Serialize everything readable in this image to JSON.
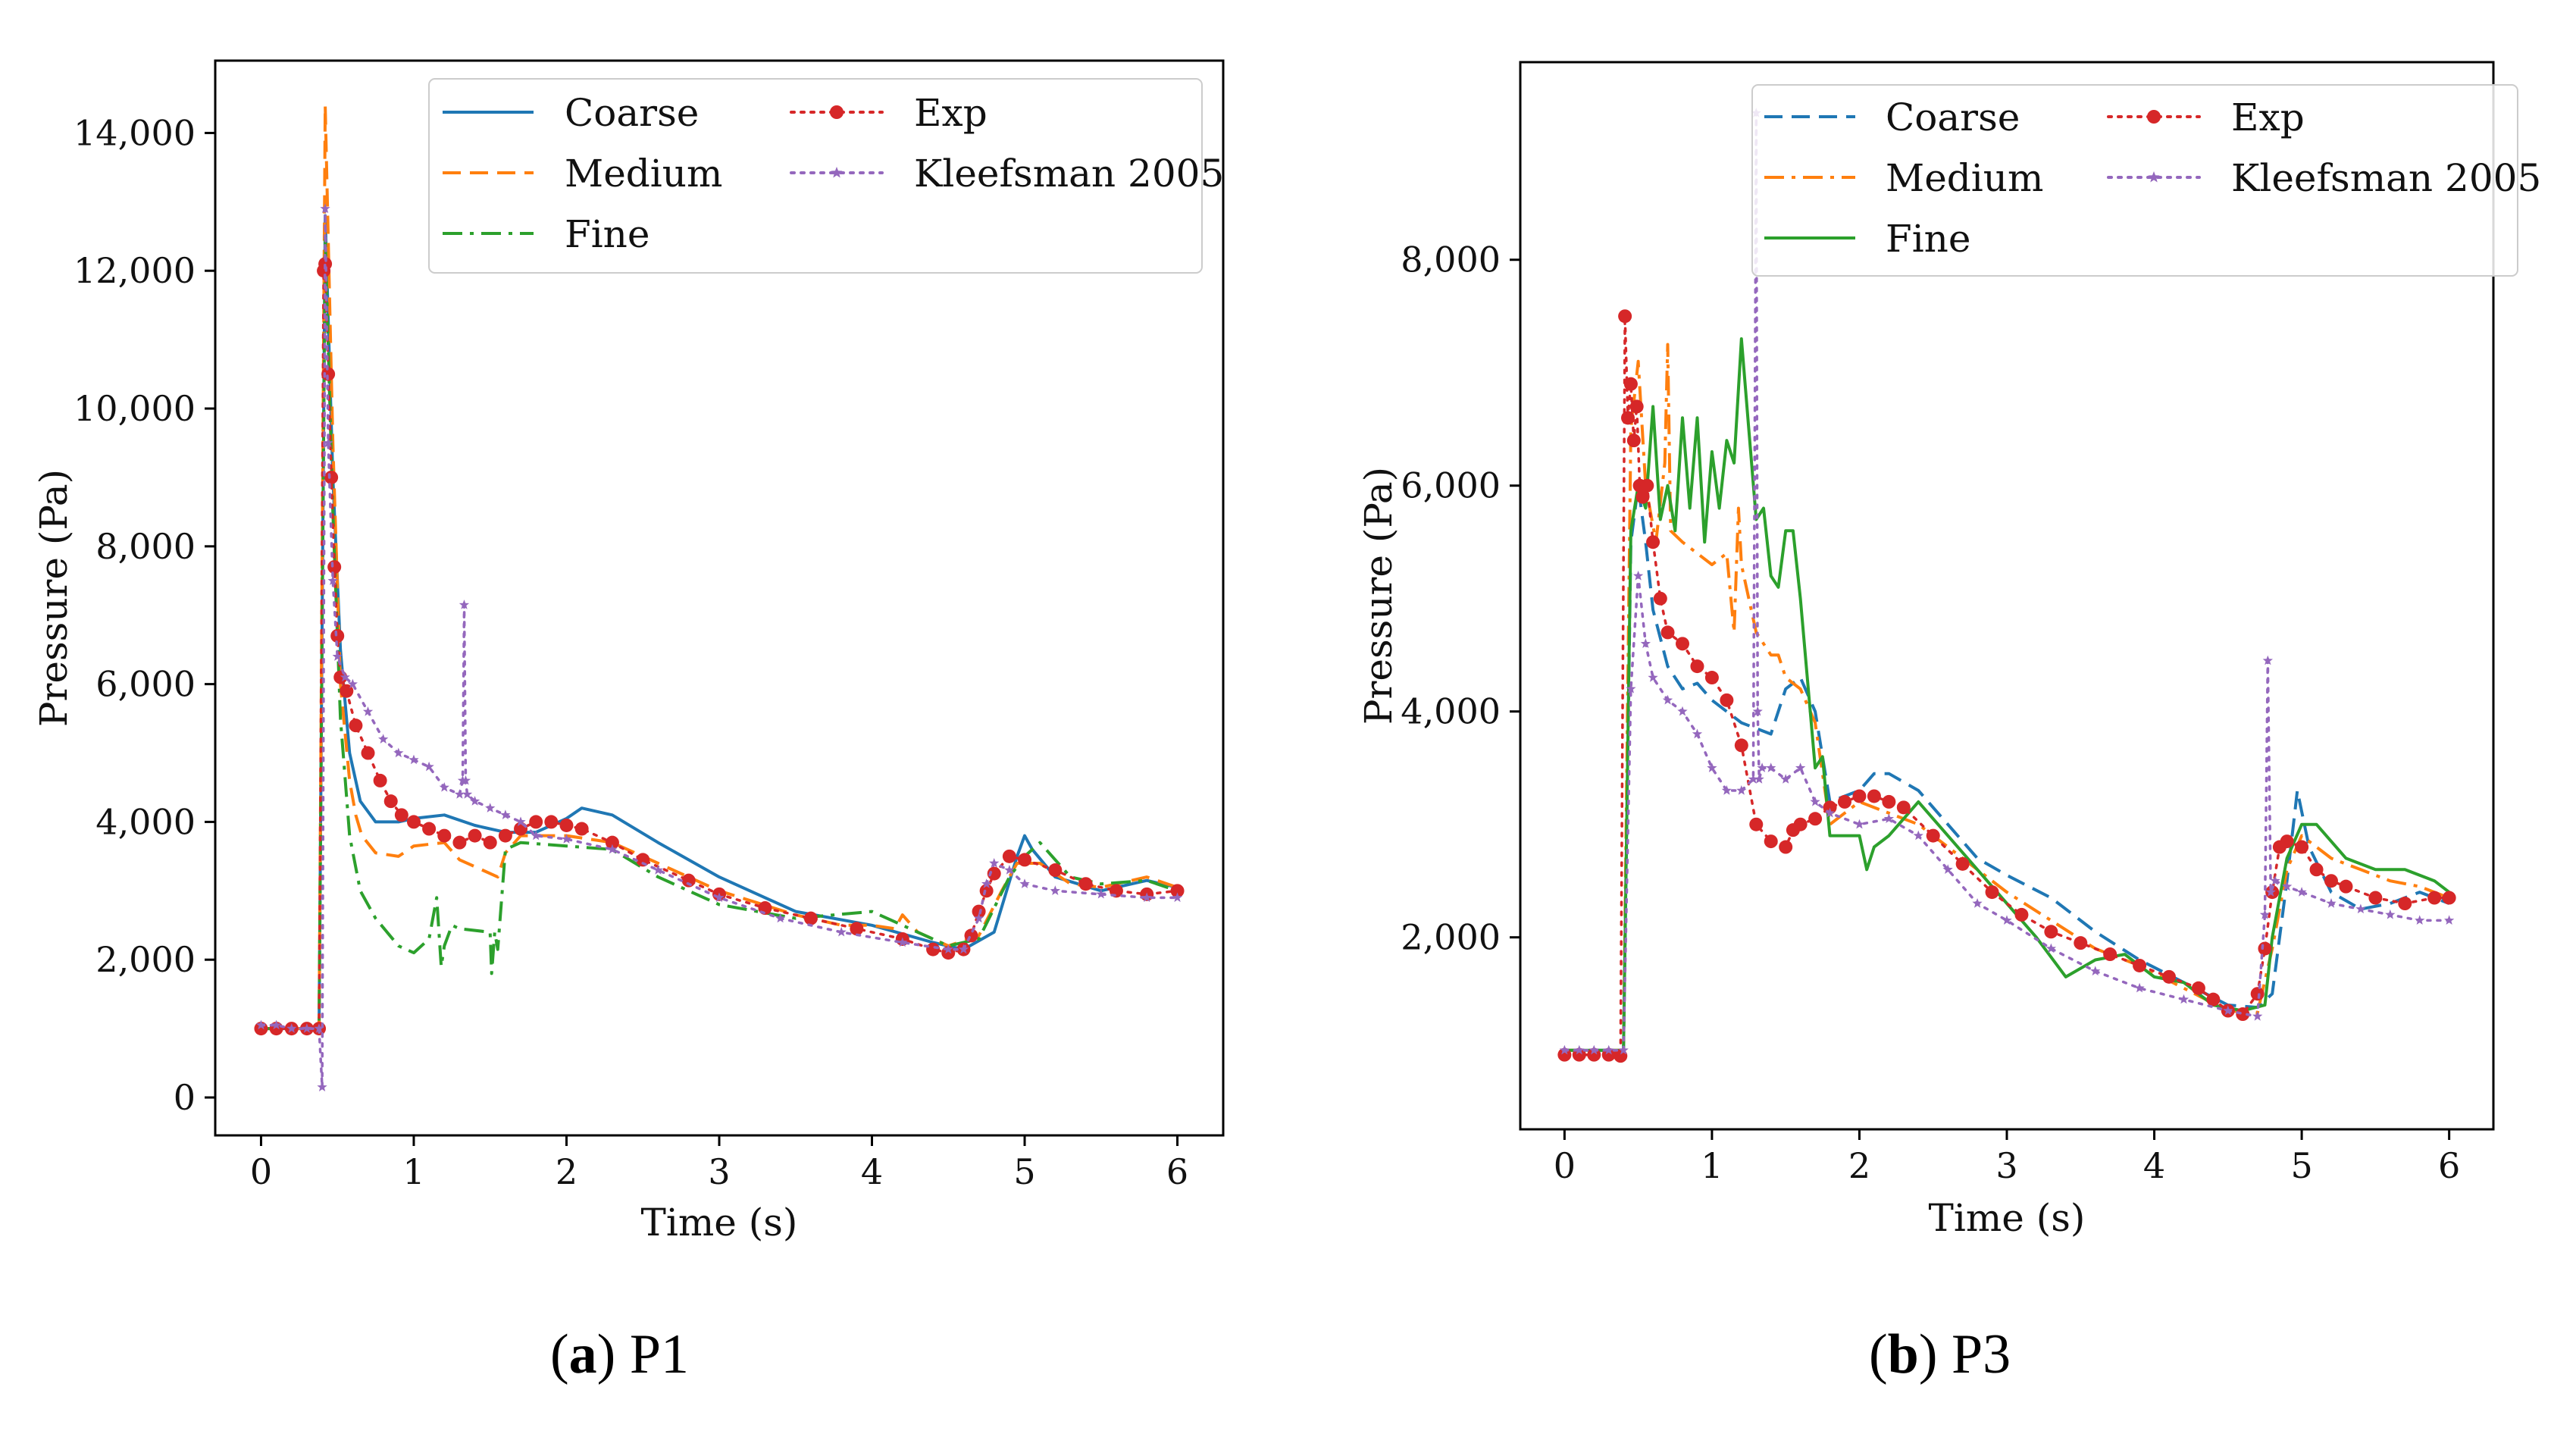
{
  "chart_data": [
    {
      "type": "line",
      "caption_letter": "a",
      "caption_text": "P1",
      "xlabel": "Time (s)",
      "ylabel": "Pressure (Pa)",
      "xlim": [
        -0.3,
        6.3
      ],
      "ylim": [
        -550,
        15050
      ],
      "xticks": [
        0,
        1,
        2,
        3,
        4,
        5,
        6
      ],
      "yticks": [
        0,
        2000,
        4000,
        6000,
        8000,
        10000,
        12000,
        14000
      ],
      "ytick_labels": [
        "0",
        "2,000",
        "4,000",
        "6,000",
        "8,000",
        "10,000",
        "12,000",
        "14,000"
      ],
      "legend_location": "upper right, two columns",
      "series": [
        {
          "name": "Coarse",
          "color": "#1f77b4",
          "dash": "solid",
          "x": [
            0,
            0.1,
            0.2,
            0.3,
            0.38,
            0.42,
            0.47,
            0.52,
            0.58,
            0.65,
            0.75,
            0.9,
            1.0,
            1.2,
            1.4,
            1.6,
            1.8,
            2.0,
            2.1,
            2.3,
            2.6,
            3.0,
            3.5,
            4.0,
            4.4,
            4.6,
            4.8,
            4.95,
            5.0,
            5.05,
            5.2,
            5.5,
            5.8,
            6.0
          ],
          "y": [
            1000,
            1000,
            1000,
            1000,
            1000,
            12800,
            9000,
            6500,
            5000,
            4300,
            4000,
            4000,
            4050,
            4100,
            3950,
            3850,
            3850,
            4050,
            4200,
            4100,
            3700,
            3200,
            2700,
            2500,
            2250,
            2150,
            2400,
            3500,
            3800,
            3600,
            3200,
            3000,
            3150,
            3050
          ]
        },
        {
          "name": "Medium",
          "color": "#ff7f0e",
          "dash": "dashed",
          "x": [
            0,
            0.1,
            0.2,
            0.3,
            0.38,
            0.42,
            0.47,
            0.52,
            0.58,
            0.62,
            0.66,
            0.75,
            0.9,
            1.0,
            1.2,
            1.3,
            1.45,
            1.55,
            1.6,
            1.7,
            2.0,
            2.3,
            2.6,
            3.0,
            3.5,
            3.8,
            4.0,
            4.15,
            4.2,
            4.3,
            4.5,
            4.7,
            4.85,
            4.95,
            5.1,
            5.3,
            5.5,
            5.8,
            6.0
          ],
          "y": [
            1000,
            1000,
            1000,
            1000,
            1000,
            14400,
            9500,
            6000,
            4600,
            4100,
            3800,
            3550,
            3500,
            3650,
            3700,
            3450,
            3300,
            3200,
            3550,
            3800,
            3800,
            3700,
            3400,
            3000,
            2650,
            2500,
            2500,
            2450,
            2650,
            2400,
            2200,
            2350,
            3000,
            3400,
            3400,
            3100,
            3050,
            3200,
            3050
          ]
        },
        {
          "name": "Fine",
          "color": "#2ca02c",
          "dash": "dashdot",
          "x": [
            0,
            0.1,
            0.2,
            0.3,
            0.38,
            0.42,
            0.47,
            0.52,
            0.58,
            0.65,
            0.75,
            0.9,
            1.0,
            1.1,
            1.15,
            1.18,
            1.2,
            1.25,
            1.3,
            1.5,
            1.51,
            1.53,
            1.55,
            1.6,
            1.7,
            2.0,
            2.3,
            2.6,
            3.0,
            3.5,
            4.0,
            4.3,
            4.5,
            4.7,
            4.9,
            5.0,
            5.1,
            5.3,
            5.5,
            5.8,
            6.0
          ],
          "y": [
            1000,
            1000,
            1000,
            1000,
            1000,
            12500,
            8500,
            5500,
            3800,
            3000,
            2600,
            2200,
            2100,
            2300,
            2900,
            1900,
            2200,
            2500,
            2450,
            2400,
            1800,
            2400,
            2150,
            3600,
            3700,
            3650,
            3600,
            3200,
            2800,
            2600,
            2700,
            2400,
            2200,
            2300,
            3200,
            3500,
            3700,
            3200,
            3100,
            3150,
            3000
          ]
        },
        {
          "name": "Exp",
          "color": "#d62728",
          "dash": "dotted",
          "marker": "circle",
          "x": [
            0,
            0.1,
            0.2,
            0.3,
            0.38,
            0.41,
            0.42,
            0.44,
            0.46,
            0.48,
            0.5,
            0.52,
            0.56,
            0.62,
            0.7,
            0.78,
            0.85,
            0.92,
            1.0,
            1.1,
            1.2,
            1.3,
            1.4,
            1.5,
            1.6,
            1.7,
            1.8,
            1.9,
            2.0,
            2.1,
            2.3,
            2.5,
            2.8,
            3.0,
            3.3,
            3.6,
            3.9,
            4.2,
            4.4,
            4.5,
            4.6,
            4.65,
            4.7,
            4.75,
            4.8,
            4.9,
            5.0,
            5.2,
            5.4,
            5.6,
            5.8,
            6.0
          ],
          "y": [
            1000,
            1000,
            1000,
            1000,
            1000,
            12000,
            12100,
            10500,
            9000,
            7700,
            6700,
            6100,
            5900,
            5400,
            5000,
            4600,
            4300,
            4100,
            4000,
            3900,
            3800,
            3700,
            3800,
            3700,
            3800,
            3900,
            4000,
            4000,
            3950,
            3900,
            3700,
            3450,
            3150,
            2950,
            2750,
            2600,
            2450,
            2300,
            2150,
            2100,
            2150,
            2350,
            2700,
            3000,
            3250,
            3500,
            3450,
            3300,
            3100,
            3000,
            2950,
            3000
          ]
        },
        {
          "name": "Kleefsman 2005",
          "color": "#9467bd",
          "dash": "dotted",
          "marker": "star",
          "x": [
            0,
            0.1,
            0.2,
            0.3,
            0.38,
            0.4,
            0.42,
            0.44,
            0.47,
            0.5,
            0.55,
            0.6,
            0.7,
            0.8,
            0.9,
            1.0,
            1.1,
            1.2,
            1.3,
            1.32,
            1.33,
            1.34,
            1.35,
            1.4,
            1.5,
            1.6,
            1.7,
            1.8,
            2.0,
            2.3,
            2.6,
            3.0,
            3.4,
            3.8,
            4.2,
            4.5,
            4.6,
            4.7,
            4.75,
            4.8,
            4.9,
            5.0,
            5.2,
            5.5,
            5.8,
            6.0
          ],
          "y": [
            1050,
            1050,
            1000,
            1000,
            1000,
            150,
            12900,
            9500,
            7500,
            6400,
            6100,
            6000,
            5600,
            5200,
            5000,
            4900,
            4800,
            4500,
            4400,
            4600,
            7150,
            4600,
            4400,
            4300,
            4200,
            4100,
            4000,
            3800,
            3750,
            3600,
            3300,
            2900,
            2600,
            2400,
            2250,
            2150,
            2150,
            2600,
            3100,
            3400,
            3300,
            3100,
            3000,
            2950,
            2900,
            2900
          ]
        }
      ]
    },
    {
      "type": "line",
      "caption_letter": "b",
      "caption_text": "P3",
      "xlabel": "Time (s)",
      "ylabel": "Pressure (Pa)",
      "xlim": [
        -0.3,
        6.3
      ],
      "ylim": [
        300,
        9750
      ],
      "xticks": [
        0,
        1,
        2,
        3,
        4,
        5,
        6
      ],
      "yticks": [
        2000,
        4000,
        6000,
        8000
      ],
      "ytick_labels": [
        "2,000",
        "4,000",
        "6,000",
        "8,000"
      ],
      "legend_location": "upper right, two columns",
      "series": [
        {
          "name": "Coarse",
          "color": "#1f77b4",
          "dash": "dashed",
          "x": [
            0,
            0.1,
            0.2,
            0.3,
            0.4,
            0.45,
            0.5,
            0.55,
            0.6,
            0.7,
            0.8,
            0.9,
            1.0,
            1.2,
            1.4,
            1.5,
            1.6,
            1.7,
            1.8,
            2.0,
            2.1,
            2.2,
            2.4,
            2.6,
            2.8,
            3.0,
            3.3,
            3.6,
            3.9,
            4.2,
            4.5,
            4.7,
            4.8,
            4.9,
            4.97,
            5.05,
            5.2,
            5.4,
            5.6,
            5.8,
            6.0
          ],
          "y": [
            1000,
            1000,
            1000,
            1000,
            1000,
            5500,
            6000,
            5500,
            4900,
            4400,
            4200,
            4250,
            4100,
            3900,
            3800,
            4200,
            4300,
            4000,
            3200,
            3300,
            3450,
            3450,
            3300,
            3000,
            2700,
            2550,
            2350,
            2050,
            1800,
            1600,
            1400,
            1380,
            1500,
            2500,
            3300,
            2800,
            2400,
            2250,
            2300,
            2400,
            2300
          ]
        },
        {
          "name": "Medium",
          "color": "#ff7f0e",
          "dash": "dashdot",
          "x": [
            0,
            0.1,
            0.2,
            0.3,
            0.4,
            0.45,
            0.5,
            0.55,
            0.62,
            0.68,
            0.7,
            0.72,
            0.8,
            0.9,
            1.0,
            1.1,
            1.15,
            1.18,
            1.2,
            1.25,
            1.3,
            1.35,
            1.4,
            1.45,
            1.5,
            1.6,
            1.7,
            1.8,
            2.0,
            2.2,
            2.4,
            2.6,
            2.8,
            3.0,
            3.3,
            3.6,
            3.9,
            4.2,
            4.5,
            4.7,
            4.8,
            4.9,
            5.0,
            5.2,
            5.4,
            5.6,
            5.8,
            6.0
          ],
          "y": [
            1000,
            1000,
            1000,
            1000,
            1000,
            6500,
            7100,
            6000,
            5500,
            6200,
            7250,
            5600,
            5500,
            5400,
            5300,
            5400,
            4700,
            5800,
            5300,
            5000,
            4700,
            4600,
            4500,
            4500,
            4300,
            4200,
            3900,
            3000,
            3200,
            3100,
            3000,
            2800,
            2600,
            2400,
            2150,
            1900,
            1750,
            1550,
            1350,
            1330,
            1900,
            2600,
            2900,
            2700,
            2600,
            2500,
            2450,
            2350
          ]
        },
        {
          "name": "Fine",
          "color": "#2ca02c",
          "dash": "solid",
          "x": [
            0,
            0.1,
            0.2,
            0.3,
            0.4,
            0.45,
            0.5,
            0.55,
            0.6,
            0.65,
            0.7,
            0.75,
            0.8,
            0.85,
            0.9,
            0.95,
            1.0,
            1.05,
            1.1,
            1.15,
            1.2,
            1.25,
            1.3,
            1.35,
            1.4,
            1.45,
            1.5,
            1.55,
            1.6,
            1.7,
            1.75,
            1.8,
            1.9,
            2.0,
            2.05,
            2.1,
            2.2,
            2.4,
            2.6,
            2.8,
            3.0,
            3.2,
            3.4,
            3.6,
            3.8,
            4.0,
            4.2,
            4.4,
            4.6,
            4.75,
            4.8,
            4.9,
            5.0,
            5.1,
            5.3,
            5.5,
            5.7,
            5.9,
            6.0
          ],
          "y": [
            1000,
            1000,
            1000,
            1000,
            1000,
            5600,
            6000,
            5800,
            6700,
            5700,
            6000,
            5600,
            6600,
            5800,
            6600,
            5500,
            6300,
            5800,
            6400,
            6200,
            7300,
            6500,
            5700,
            5800,
            5200,
            5100,
            5600,
            5600,
            5000,
            3500,
            3600,
            2900,
            2900,
            2900,
            2600,
            2800,
            2900,
            3200,
            2900,
            2600,
            2300,
            2000,
            1650,
            1800,
            1850,
            1650,
            1600,
            1400,
            1350,
            1400,
            2000,
            2700,
            3000,
            3000,
            2700,
            2600,
            2600,
            2500,
            2400
          ]
        },
        {
          "name": "Exp",
          "color": "#d62728",
          "dash": "dotted",
          "marker": "circle",
          "x": [
            0,
            0.1,
            0.2,
            0.3,
            0.38,
            0.41,
            0.43,
            0.45,
            0.47,
            0.49,
            0.51,
            0.53,
            0.56,
            0.6,
            0.65,
            0.7,
            0.8,
            0.9,
            1.0,
            1.1,
            1.2,
            1.3,
            1.4,
            1.5,
            1.55,
            1.6,
            1.7,
            1.8,
            1.9,
            2.0,
            2.1,
            2.2,
            2.3,
            2.5,
            2.7,
            2.9,
            3.1,
            3.3,
            3.5,
            3.7,
            3.9,
            4.1,
            4.3,
            4.4,
            4.5,
            4.6,
            4.7,
            4.75,
            4.8,
            4.85,
            4.9,
            5.0,
            5.1,
            5.2,
            5.3,
            5.5,
            5.7,
            5.9,
            6.0
          ],
          "y": [
            960,
            960,
            960,
            960,
            950,
            7500,
            6600,
            6900,
            6400,
            6700,
            6000,
            5900,
            6000,
            5500,
            5000,
            4700,
            4600,
            4400,
            4300,
            4100,
            3700,
            3000,
            2850,
            2800,
            2950,
            3000,
            3050,
            3150,
            3200,
            3250,
            3250,
            3200,
            3150,
            2900,
            2650,
            2400,
            2200,
            2050,
            1950,
            1850,
            1750,
            1650,
            1550,
            1450,
            1350,
            1320,
            1500,
            1900,
            2400,
            2800,
            2850,
            2800,
            2600,
            2500,
            2450,
            2350,
            2300,
            2350,
            2350
          ]
        },
        {
          "name": "Kleefsman 2005",
          "color": "#9467bd",
          "dash": "dotted",
          "marker": "star",
          "x": [
            0,
            0.1,
            0.2,
            0.3,
            0.4,
            0.45,
            0.5,
            0.55,
            0.6,
            0.7,
            0.8,
            0.9,
            1.0,
            1.1,
            1.2,
            1.28,
            1.3,
            1.31,
            1.32,
            1.34,
            1.4,
            1.5,
            1.6,
            1.7,
            1.8,
            2.0,
            2.2,
            2.4,
            2.6,
            2.8,
            3.0,
            3.3,
            3.6,
            3.9,
            4.2,
            4.5,
            4.7,
            4.75,
            4.77,
            4.79,
            4.82,
            4.9,
            5.0,
            5.2,
            5.4,
            5.6,
            5.8,
            6.0
          ],
          "y": [
            1000,
            1000,
            1000,
            1000,
            1000,
            4200,
            5200,
            4600,
            4300,
            4100,
            4000,
            3800,
            3500,
            3300,
            3300,
            3400,
            9300,
            4000,
            3400,
            3500,
            3500,
            3400,
            3500,
            3200,
            3100,
            3000,
            3050,
            2900,
            2600,
            2300,
            2150,
            1900,
            1700,
            1550,
            1450,
            1350,
            1300,
            2200,
            4450,
            2400,
            2500,
            2450,
            2400,
            2300,
            2250,
            2200,
            2150,
            2150
          ]
        }
      ]
    }
  ]
}
